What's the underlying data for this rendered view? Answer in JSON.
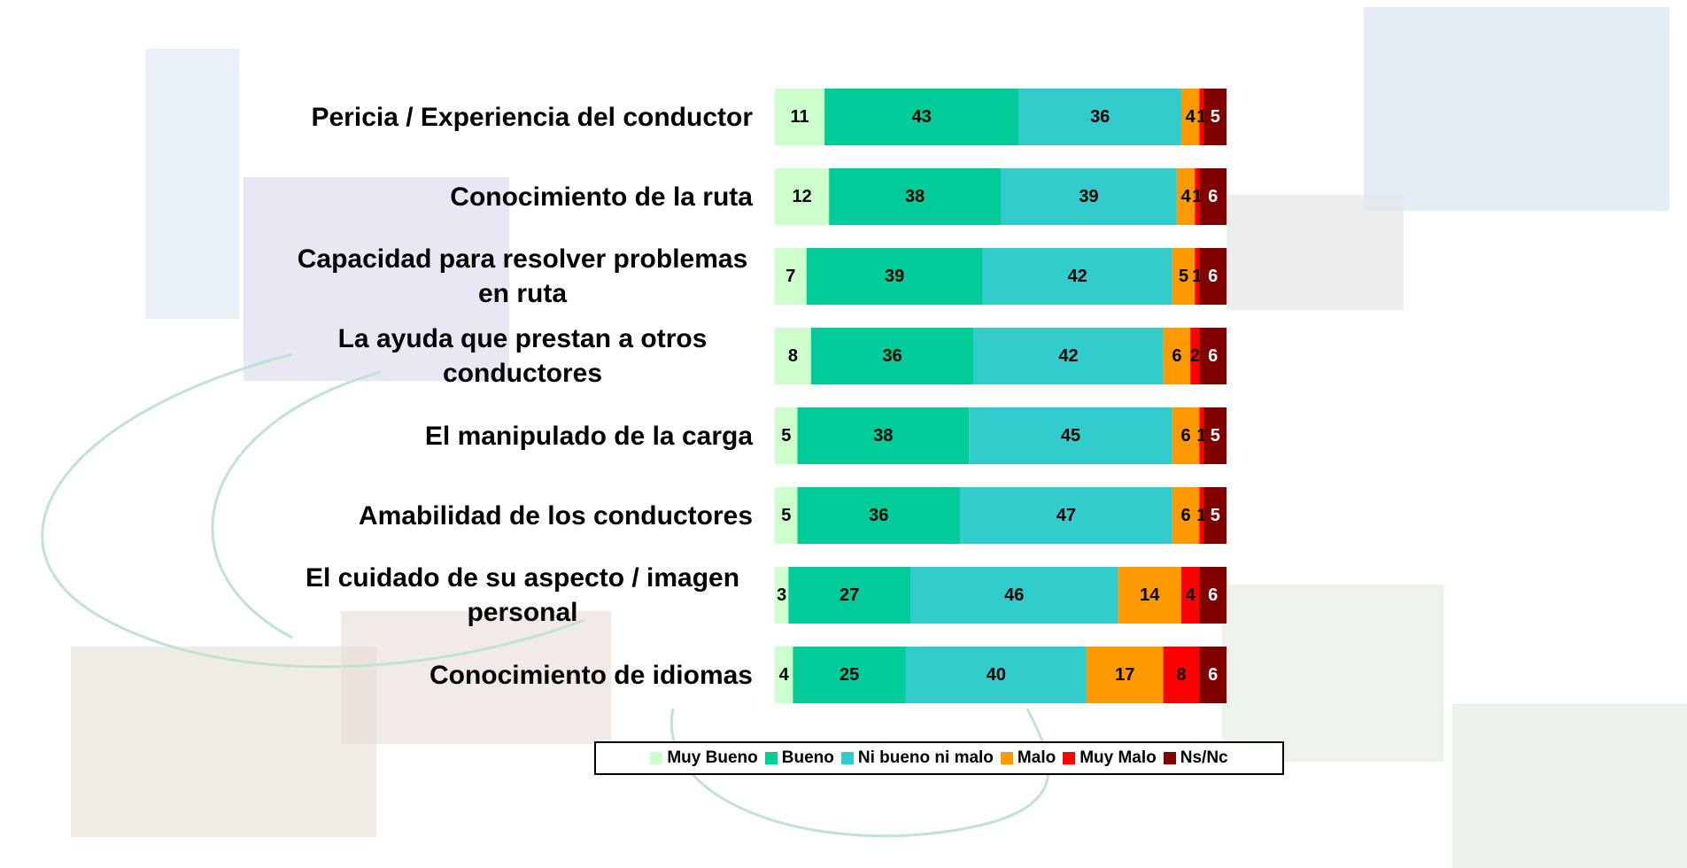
{
  "chart_data": {
    "type": "stacked-bar-horizontal",
    "categories": [
      "Pericia / Experiencia del conductor",
      "Conocimiento de la ruta",
      "Capacidad para resolver problemas en ruta",
      "La ayuda que prestan a otros conductores",
      "El manipulado de la carga",
      "Amabilidad de los conductores",
      "El cuidado de su aspecto / imagen personal",
      "Conocimiento de idiomas"
    ],
    "xlim": [
      0,
      100
    ],
    "series": [
      {
        "name": "Muy Bueno",
        "color": "#ccffcc",
        "label_color": "#000000",
        "values": [
          11,
          12,
          7,
          8,
          5,
          5,
          3,
          4
        ]
      },
      {
        "name": "Bueno",
        "color": "#00cc99",
        "label_color": "#000000",
        "values": [
          43,
          38,
          39,
          36,
          38,
          36,
          27,
          25
        ]
      },
      {
        "name": "Ni bueno ni malo",
        "color": "#33cccc",
        "label_color": "#000000",
        "values": [
          36,
          39,
          42,
          42,
          45,
          47,
          46,
          40
        ]
      },
      {
        "name": "Malo",
        "color": "#ff9900",
        "label_color": "#000000",
        "values": [
          4,
          4,
          5,
          6,
          6,
          6,
          14,
          17
        ]
      },
      {
        "name": "Muy Malo",
        "color": "#ff0000",
        "label_color": "#000000",
        "values": [
          1,
          1,
          1,
          2,
          1,
          1,
          4,
          8
        ]
      },
      {
        "name": "Ns/Nc",
        "color": "#800000",
        "label_color": "#ffffff",
        "values": [
          5,
          6,
          6,
          6,
          5,
          5,
          6,
          6
        ]
      }
    ],
    "legend": "bottom"
  }
}
